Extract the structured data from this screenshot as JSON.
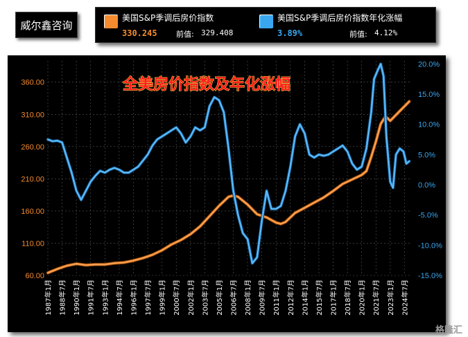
{
  "brand": "威尔鑫咨询",
  "legend": {
    "series1": {
      "name": "美国S&P季调后房价指数",
      "value": "330.245",
      "prev_label": "前值:",
      "prev_value": "329.408",
      "color": "#f58b2e"
    },
    "series2": {
      "name": "美国S&P季调后房价指数年化涨幅",
      "value": "3.89%",
      "prev_label": "前值:",
      "prev_value": "4.12%",
      "color": "#3aa6f0"
    }
  },
  "watermark": "格隆汇",
  "chart_data": {
    "type": "line",
    "title": "全美房价指数及年化涨幅",
    "x_tick_labels": [
      "1987年1月",
      "1988年7月",
      "1990年1月",
      "1991年7月",
      "1993年1月",
      "1994年7月",
      "1996年1月",
      "1997年7月",
      "1999年1月",
      "2000年7月",
      "2002年1月",
      "2003年7月",
      "2005年1月",
      "2006年7月",
      "2008年1月",
      "2009年7月",
      "2011年1月",
      "2012年7月",
      "2014年1月",
      "2015年7月",
      "2017年1月",
      "2018年7月",
      "2020年1月",
      "2021年7月",
      "2023年1月",
      "2024年7月"
    ],
    "y_left": {
      "ticks": [
        "60.00",
        "110.00",
        "160.00",
        "210.00",
        "260.00",
        "310.00",
        "360.00"
      ],
      "range": [
        60,
        393
      ],
      "color": "#f58b2e"
    },
    "y_right": {
      "ticks": [
        "-15.0%",
        "-10.0%",
        "-5.0%",
        "0.0%",
        "5.0%",
        "10.0%",
        "15.0%",
        "20.0%"
      ],
      "range": [
        -15,
        20.5
      ],
      "color": "#3aa6f0"
    },
    "grid": true,
    "series": [
      {
        "name": "美国S&P季调后房价指数",
        "axis": "left",
        "color": "#f58b2e",
        "x": [
          1987.0,
          1988.0,
          1989.0,
          1990.0,
          1991.0,
          1992.0,
          1993.0,
          1994.0,
          1995.0,
          1996.0,
          1997.0,
          1998.0,
          1999.0,
          2000.0,
          2001.0,
          2002.0,
          2003.0,
          2004.0,
          2005.0,
          2006.0,
          2006.5,
          2007.0,
          2008.0,
          2009.0,
          2010.0,
          2011.0,
          2011.5,
          2012.0,
          2013.0,
          2014.0,
          2015.0,
          2016.0,
          2017.0,
          2018.0,
          2019.0,
          2020.0,
          2020.5,
          2021.0,
          2021.5,
          2022.0,
          2022.5,
          2023.0,
          2024.0,
          2025.0
        ],
        "y": [
          64,
          70,
          75,
          78,
          76,
          77,
          77,
          79,
          80,
          83,
          87,
          92,
          99,
          108,
          115,
          124,
          136,
          152,
          168,
          182,
          184,
          182,
          170,
          155,
          150,
          142,
          140,
          143,
          157,
          165,
          173,
          181,
          191,
          202,
          209,
          216,
          222,
          244,
          268,
          295,
          307,
          300,
          315,
          330
        ]
      },
      {
        "name": "美国S&P季调后房价指数年化涨幅",
        "axis": "right",
        "color": "#3aa6f0",
        "x": [
          1987.0,
          1987.5,
          1988.0,
          1988.5,
          1989.0,
          1989.5,
          1990.0,
          1990.5,
          1991.0,
          1991.5,
          1992.0,
          1992.5,
          1993.0,
          1993.5,
          1994.0,
          1994.5,
          1995.0,
          1995.5,
          1996.0,
          1996.5,
          1997.0,
          1997.5,
          1998.0,
          1998.5,
          1999.0,
          1999.5,
          2000.0,
          2000.5,
          2001.0,
          2001.5,
          2002.0,
          2002.5,
          2003.0,
          2003.5,
          2004.0,
          2004.5,
          2005.0,
          2005.5,
          2006.0,
          2006.5,
          2007.0,
          2007.5,
          2008.0,
          2008.5,
          2009.0,
          2009.5,
          2010.0,
          2010.5,
          2011.0,
          2011.5,
          2012.0,
          2012.5,
          2013.0,
          2013.5,
          2014.0,
          2014.5,
          2015.0,
          2015.5,
          2016.0,
          2016.5,
          2017.0,
          2017.5,
          2018.0,
          2018.5,
          2019.0,
          2019.5,
          2020.0,
          2020.5,
          2021.0,
          2021.3,
          2021.7,
          2022.0,
          2022.3,
          2022.6,
          2023.0,
          2023.3,
          2023.6,
          2024.0,
          2024.4,
          2024.7,
          2025.0
        ],
        "y": [
          7.5,
          7.2,
          7.3,
          7.0,
          4.5,
          2.0,
          -1.0,
          -2.5,
          -1.0,
          0.5,
          1.5,
          2.3,
          2.0,
          2.5,
          2.8,
          2.5,
          2.0,
          2.0,
          2.5,
          3.0,
          4.0,
          5.0,
          6.5,
          7.5,
          8.0,
          8.5,
          9.0,
          9.5,
          8.5,
          7.0,
          8.0,
          9.5,
          9.0,
          9.5,
          13.0,
          14.5,
          14.0,
          12.0,
          6.0,
          -1.0,
          -5.0,
          -8.0,
          -9.0,
          -13.0,
          -12.0,
          -6.0,
          -1.0,
          -4.0,
          -4.0,
          -3.5,
          -1.0,
          3.0,
          8.0,
          10.0,
          8.5,
          5.0,
          4.5,
          5.0,
          4.8,
          5.0,
          5.5,
          6.0,
          6.5,
          5.5,
          3.5,
          2.5,
          3.0,
          6.0,
          12.0,
          17.5,
          19.0,
          20.0,
          18.0,
          8.0,
          0.5,
          -0.5,
          5.0,
          6.0,
          5.5,
          3.5,
          3.89
        ]
      }
    ]
  }
}
